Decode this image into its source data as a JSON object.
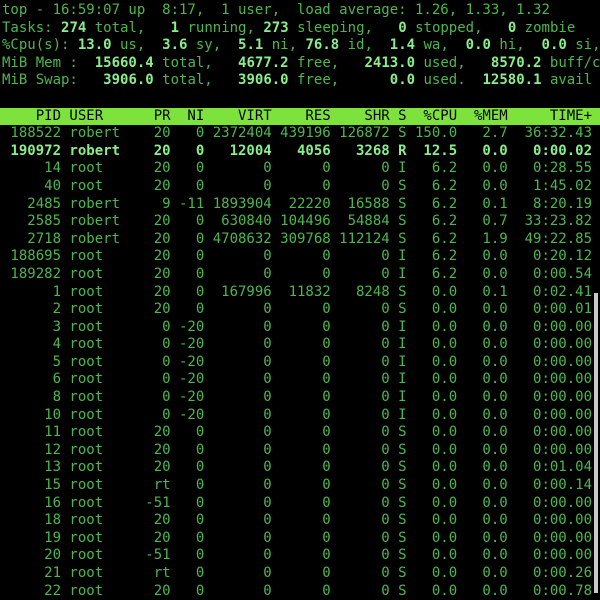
{
  "app": {
    "name": "top",
    "kind": "terminal-process-monitor"
  },
  "colors": {
    "background": "#000000",
    "text_green": "#4cb84c",
    "bold_green": "#8aee8a",
    "header_bg": "#7de33c",
    "header_text": "#000000",
    "scrollbar": "#c9c9c9"
  },
  "summary": {
    "lines": [
      [
        {
          "text": "top - 16:59:07 up  8:17,  1 user,  load average: 1.26, 1.33, 1.32",
          "bold": false
        }
      ],
      [
        {
          "text": "Tasks: ",
          "bold": false
        },
        {
          "text": "274",
          "bold": true
        },
        {
          "text": " total,   ",
          "bold": false
        },
        {
          "text": "1",
          "bold": true
        },
        {
          "text": " running, ",
          "bold": false
        },
        {
          "text": "273",
          "bold": true
        },
        {
          "text": " sleeping,   ",
          "bold": false
        },
        {
          "text": "0",
          "bold": true
        },
        {
          "text": " stopped,   ",
          "bold": false
        },
        {
          "text": "0",
          "bold": true
        },
        {
          "text": " zombie",
          "bold": false
        }
      ],
      [
        {
          "text": "%Cpu(s): ",
          "bold": false
        },
        {
          "text": "13.0",
          "bold": true
        },
        {
          "text": " us,  ",
          "bold": false
        },
        {
          "text": "3.6",
          "bold": true
        },
        {
          "text": " sy,  ",
          "bold": false
        },
        {
          "text": "5.1",
          "bold": true
        },
        {
          "text": " ni, ",
          "bold": false
        },
        {
          "text": "76.8",
          "bold": true
        },
        {
          "text": " id,  ",
          "bold": false
        },
        {
          "text": "1.4",
          "bold": true
        },
        {
          "text": " wa,  ",
          "bold": false
        },
        {
          "text": "0.0",
          "bold": true
        },
        {
          "text": " hi,  ",
          "bold": false
        },
        {
          "text": "0.0",
          "bold": true
        },
        {
          "text": " si,",
          "bold": false
        }
      ],
      [
        {
          "text": "MiB Mem :  ",
          "bold": false
        },
        {
          "text": "15660.4",
          "bold": true
        },
        {
          "text": " total,   ",
          "bold": false
        },
        {
          "text": "4677.2",
          "bold": true
        },
        {
          "text": " free,   ",
          "bold": false
        },
        {
          "text": "2413.0",
          "bold": true
        },
        {
          "text": " used,   ",
          "bold": false
        },
        {
          "text": "8570.2",
          "bold": true
        },
        {
          "text": " buff/c",
          "bold": false
        }
      ],
      [
        {
          "text": "MiB Swap:   ",
          "bold": false
        },
        {
          "text": "3906.0",
          "bold": true
        },
        {
          "text": " total,   ",
          "bold": false
        },
        {
          "text": "3906.0",
          "bold": true
        },
        {
          "text": " free,      ",
          "bold": false
        },
        {
          "text": "0.0",
          "bold": true
        },
        {
          "text": " used.  ",
          "bold": false
        },
        {
          "text": "12580.1",
          "bold": true
        },
        {
          "text": " avail",
          "bold": false
        }
      ]
    ]
  },
  "table": {
    "columns": [
      {
        "label": "PID",
        "width": 7,
        "align": "right"
      },
      {
        "label": "USER",
        "width": 8,
        "align": "left"
      },
      {
        "label": "PR",
        "width": 3,
        "align": "right"
      },
      {
        "label": "NI",
        "width": 3,
        "align": "right"
      },
      {
        "label": "VIRT",
        "width": 7,
        "align": "right"
      },
      {
        "label": "RES",
        "width": 6,
        "align": "right"
      },
      {
        "label": "SHR",
        "width": 6,
        "align": "right"
      },
      {
        "label": "S",
        "width": 1,
        "align": "right"
      },
      {
        "label": "%CPU",
        "width": 5,
        "align": "right"
      },
      {
        "label": "%MEM",
        "width": 5,
        "align": "right"
      },
      {
        "label": "TIME+",
        "width": 9,
        "align": "right"
      }
    ],
    "highlighted_pid": "190972",
    "rows": [
      [
        "188522",
        "robert",
        "20",
        "0",
        "2372404",
        "439196",
        "126872",
        "S",
        "150.0",
        "2.7",
        "36:32.43"
      ],
      [
        "190972",
        "robert",
        "20",
        "0",
        "12004",
        "4056",
        "3268",
        "R",
        "12.5",
        "0.0",
        "0:00.02"
      ],
      [
        "14",
        "root",
        "20",
        "0",
        "0",
        "0",
        "0",
        "I",
        "6.2",
        "0.0",
        "0:28.55"
      ],
      [
        "40",
        "root",
        "20",
        "0",
        "0",
        "0",
        "0",
        "S",
        "6.2",
        "0.0",
        "1:45.02"
      ],
      [
        "2485",
        "robert",
        "9",
        "-11",
        "1893904",
        "22220",
        "16588",
        "S",
        "6.2",
        "0.1",
        "8:20.19"
      ],
      [
        "2585",
        "robert",
        "20",
        "0",
        "630840",
        "104496",
        "54884",
        "S",
        "6.2",
        "0.7",
        "33:23.82"
      ],
      [
        "2718",
        "robert",
        "20",
        "0",
        "4708632",
        "309768",
        "112124",
        "S",
        "6.2",
        "1.9",
        "49:22.85"
      ],
      [
        "188695",
        "root",
        "20",
        "0",
        "0",
        "0",
        "0",
        "I",
        "6.2",
        "0.0",
        "0:20.12"
      ],
      [
        "189282",
        "root",
        "20",
        "0",
        "0",
        "0",
        "0",
        "I",
        "6.2",
        "0.0",
        "0:00.54"
      ],
      [
        "1",
        "root",
        "20",
        "0",
        "167996",
        "11832",
        "8248",
        "S",
        "0.0",
        "0.1",
        "0:02.41"
      ],
      [
        "2",
        "root",
        "20",
        "0",
        "0",
        "0",
        "0",
        "S",
        "0.0",
        "0.0",
        "0:00.01"
      ],
      [
        "3",
        "root",
        "0",
        "-20",
        "0",
        "0",
        "0",
        "I",
        "0.0",
        "0.0",
        "0:00.00"
      ],
      [
        "4",
        "root",
        "0",
        "-20",
        "0",
        "0",
        "0",
        "I",
        "0.0",
        "0.0",
        "0:00.00"
      ],
      [
        "5",
        "root",
        "0",
        "-20",
        "0",
        "0",
        "0",
        "I",
        "0.0",
        "0.0",
        "0:00.00"
      ],
      [
        "6",
        "root",
        "0",
        "-20",
        "0",
        "0",
        "0",
        "I",
        "0.0",
        "0.0",
        "0:00.00"
      ],
      [
        "8",
        "root",
        "0",
        "-20",
        "0",
        "0",
        "0",
        "I",
        "0.0",
        "0.0",
        "0:00.00"
      ],
      [
        "10",
        "root",
        "0",
        "-20",
        "0",
        "0",
        "0",
        "I",
        "0.0",
        "0.0",
        "0:00.00"
      ],
      [
        "11",
        "root",
        "20",
        "0",
        "0",
        "0",
        "0",
        "S",
        "0.0",
        "0.0",
        "0:00.00"
      ],
      [
        "12",
        "root",
        "20",
        "0",
        "0",
        "0",
        "0",
        "S",
        "0.0",
        "0.0",
        "0:00.00"
      ],
      [
        "13",
        "root",
        "20",
        "0",
        "0",
        "0",
        "0",
        "S",
        "0.0",
        "0.0",
        "0:01.04"
      ],
      [
        "15",
        "root",
        "rt",
        "0",
        "0",
        "0",
        "0",
        "S",
        "0.0",
        "0.0",
        "0:00.14"
      ],
      [
        "16",
        "root",
        "-51",
        "0",
        "0",
        "0",
        "0",
        "S",
        "0.0",
        "0.0",
        "0:00.00"
      ],
      [
        "18",
        "root",
        "20",
        "0",
        "0",
        "0",
        "0",
        "S",
        "0.0",
        "0.0",
        "0:00.00"
      ],
      [
        "19",
        "root",
        "20",
        "0",
        "0",
        "0",
        "0",
        "S",
        "0.0",
        "0.0",
        "0:00.00"
      ],
      [
        "20",
        "root",
        "-51",
        "0",
        "0",
        "0",
        "0",
        "S",
        "0.0",
        "0.0",
        "0:00.00"
      ],
      [
        "21",
        "root",
        "rt",
        "0",
        "0",
        "0",
        "0",
        "S",
        "0.0",
        "0.0",
        "0:00.26"
      ],
      [
        "22",
        "root",
        "20",
        "0",
        "0",
        "0",
        "0",
        "S",
        "0.0",
        "0.0",
        "0:00.78"
      ]
    ]
  }
}
